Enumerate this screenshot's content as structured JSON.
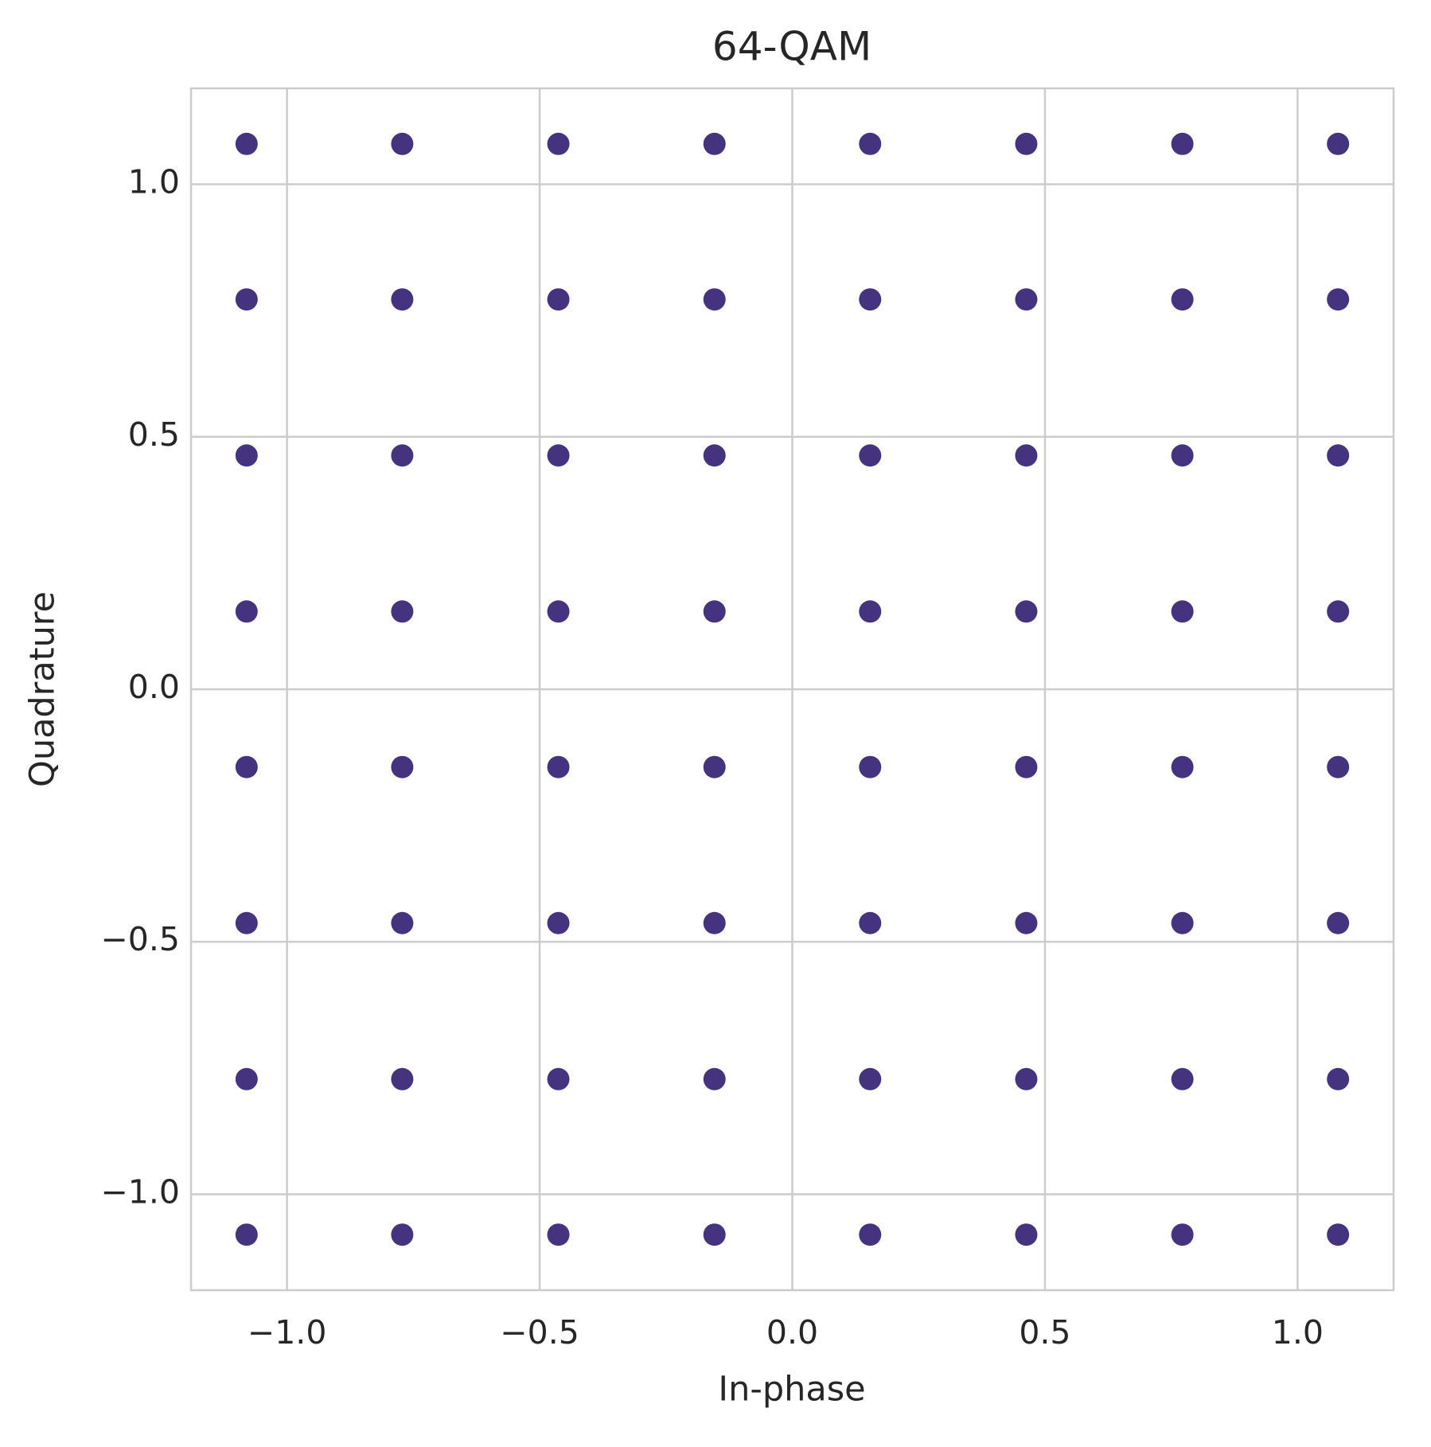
{
  "chart_data": {
    "type": "scatter",
    "title": "64-QAM",
    "x_label": "In-phase",
    "y_label": "Quadrature",
    "x": [
      -1.08,
      -1.08,
      -1.08,
      -1.08,
      -1.08,
      -1.08,
      -1.08,
      -1.08,
      -0.772,
      -0.772,
      -0.772,
      -0.772,
      -0.772,
      -0.772,
      -0.772,
      -0.772,
      -0.463,
      -0.463,
      -0.463,
      -0.463,
      -0.463,
      -0.463,
      -0.463,
      -0.463,
      -0.154,
      -0.154,
      -0.154,
      -0.154,
      -0.154,
      -0.154,
      -0.154,
      -0.154,
      0.154,
      0.154,
      0.154,
      0.154,
      0.154,
      0.154,
      0.154,
      0.154,
      0.463,
      0.463,
      0.463,
      0.463,
      0.463,
      0.463,
      0.463,
      0.463,
      0.772,
      0.772,
      0.772,
      0.772,
      0.772,
      0.772,
      0.772,
      0.772,
      1.08,
      1.08,
      1.08,
      1.08,
      1.08,
      1.08,
      1.08,
      1.08
    ],
    "values": [
      -1.08,
      -0.772,
      -0.463,
      -0.154,
      0.154,
      0.463,
      0.772,
      1.08,
      -1.08,
      -0.772,
      -0.463,
      -0.154,
      0.154,
      0.463,
      0.772,
      1.08,
      -1.08,
      -0.772,
      -0.463,
      -0.154,
      0.154,
      0.463,
      0.772,
      1.08,
      -1.08,
      -0.772,
      -0.463,
      -0.154,
      0.154,
      0.463,
      0.772,
      1.08,
      -1.08,
      -0.772,
      -0.463,
      -0.154,
      0.154,
      0.463,
      0.772,
      1.08,
      -1.08,
      -0.772,
      -0.463,
      -0.154,
      0.154,
      0.463,
      0.772,
      1.08,
      -1.08,
      -0.772,
      -0.463,
      -0.154,
      0.154,
      0.463,
      0.772,
      1.08,
      -1.08,
      -0.772,
      -0.463,
      -0.154,
      0.154,
      0.463,
      0.772,
      1.08
    ],
    "color": "#45337f",
    "xlim": [
      -1.19,
      1.19
    ],
    "ylim": [
      -1.19,
      1.19
    ],
    "xticks": [
      {
        "value": -1.0,
        "label": "−1.0"
      },
      {
        "value": -0.5,
        "label": "−0.5"
      },
      {
        "value": 0.0,
        "label": "0.0"
      },
      0.5,
      {
        "value": 1.0,
        "label": "1.0"
      }
    ],
    "yticks": [
      {
        "value": -1.0,
        "label": "−1.0"
      },
      {
        "value": -0.5,
        "label": "−0.5"
      },
      {
        "value": 0.0,
        "label": "0.0"
      },
      0.5,
      {
        "value": 1.0,
        "label": "1.0"
      }
    ],
    "grid": true
  }
}
